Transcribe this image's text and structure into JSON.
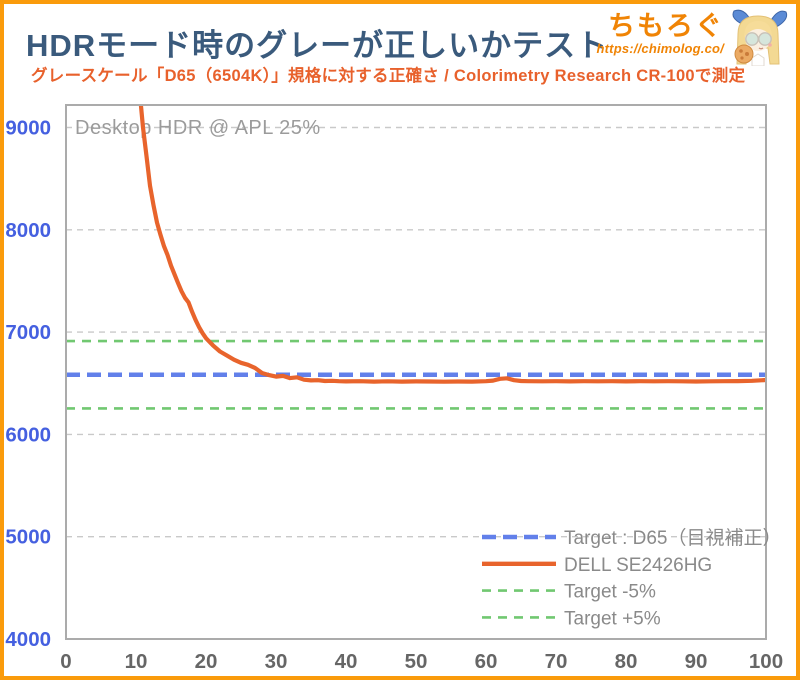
{
  "header": {
    "title": "HDRモード時のグレーが正しいかテスト",
    "subtitle": "グレースケール「D65（6504K）」規格に対する正確さ / Colorimetry Research CR-100で測定",
    "logo": {
      "brand": "ちもろぐ",
      "url": "https://chimolog.co/"
    }
  },
  "theme": {
    "border": "#FA9B0B",
    "title_color": "#3A5A7C",
    "subtitle_color": "#E8612C",
    "brand_color": "#F08405"
  },
  "chart_data": {
    "type": "line",
    "annotation": "Desktop HDR @ APL 25%",
    "xlabel": "",
    "ylabel": "",
    "xlim": [
      0,
      100
    ],
    "ylim": [
      4000,
      9220
    ],
    "x_ticks": [
      0,
      10,
      20,
      30,
      40,
      50,
      60,
      70,
      80,
      90,
      100
    ],
    "y_ticks": [
      4000,
      5000,
      6000,
      7000,
      8000,
      9000
    ],
    "grid": "horizontal-dashed",
    "series": [
      {
        "name": "DELL SE2426HG",
        "color": "#E8642C",
        "style": "solid",
        "x": [
          10.7,
          11,
          11.5,
          12,
          12.5,
          13,
          13.5,
          14,
          14.5,
          15,
          15.5,
          16,
          16.5,
          17,
          17.5,
          18,
          18.5,
          19,
          19.5,
          20,
          20.5,
          21,
          22,
          23,
          24,
          25,
          26,
          27,
          28,
          29,
          30,
          31,
          32,
          33,
          34,
          35,
          36,
          37,
          38,
          39,
          40,
          42,
          44,
          46,
          48,
          50,
          52,
          54,
          56,
          58,
          60,
          61,
          62,
          63,
          64,
          65,
          66,
          68,
          70,
          72,
          74,
          76,
          78,
          80,
          82,
          84,
          86,
          88,
          90,
          92,
          94,
          96,
          98,
          100
        ],
        "y": [
          9220,
          9000,
          8720,
          8430,
          8240,
          8070,
          7950,
          7840,
          7755,
          7650,
          7565,
          7480,
          7400,
          7335,
          7290,
          7200,
          7120,
          7050,
          6990,
          6940,
          6905,
          6870,
          6810,
          6770,
          6730,
          6700,
          6680,
          6650,
          6600,
          6580,
          6565,
          6572,
          6550,
          6558,
          6535,
          6528,
          6530,
          6522,
          6524,
          6520,
          6518,
          6520,
          6516,
          6519,
          6516,
          6518,
          6517,
          6515,
          6517,
          6516,
          6520,
          6526,
          6544,
          6548,
          6530,
          6522,
          6520,
          6519,
          6520,
          6518,
          6520,
          6519,
          6520,
          6518,
          6520,
          6519,
          6520,
          6519,
          6517,
          6519,
          6520,
          6521,
          6524,
          6532
        ]
      }
    ],
    "reference_lines": [
      {
        "name": "Target : D65（目視補正）",
        "value": 6583,
        "color": "#6280EA",
        "style": "dashed-thick"
      },
      {
        "name": "Target +5%",
        "value": 6912,
        "color": "#71C871",
        "style": "dashed"
      },
      {
        "name": "Target -5%",
        "value": 6254,
        "color": "#71C871",
        "style": "dashed"
      }
    ],
    "legend": {
      "position": "inside-bottom-right",
      "entries": [
        {
          "label": "Target : D65（目視補正）",
          "color": "#6280EA",
          "dash": "14 7",
          "width": 4.6
        },
        {
          "label": "DELL SE2426HG",
          "color": "#E8642C",
          "dash": "",
          "width": 4.4
        },
        {
          "label": "Target -5%",
          "color": "#71C871",
          "dash": "9 7",
          "width": 2.6
        },
        {
          "label": "Target +5%",
          "color": "#71C871",
          "dash": "9 7",
          "width": 2.6
        }
      ]
    },
    "colors": {
      "axis_label_y": "#4560E0",
      "axis_label_x": "#666666",
      "grid": "#C9C9C9",
      "frame": "#ABABAB",
      "annotation": "#9B9B9B",
      "legend_text": "#8A8A8A"
    }
  }
}
